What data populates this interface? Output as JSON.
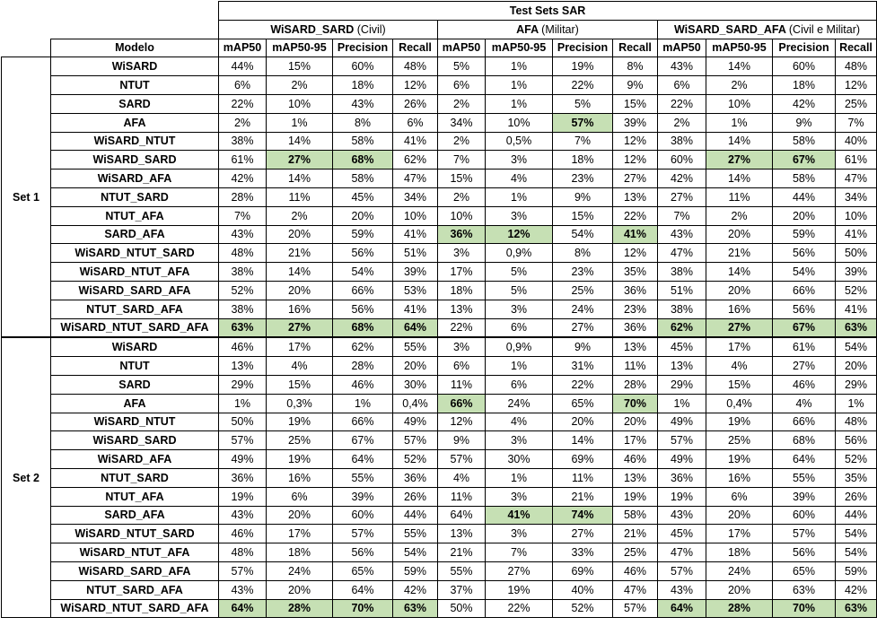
{
  "header": {
    "title": "Test Sets SAR",
    "modelo": "Modelo",
    "groups": [
      {
        "name": "WiSARD_SARD",
        "sub": "(Civil)"
      },
      {
        "name": "AFA",
        "sub": "(Militar)"
      },
      {
        "name": "WiSARD_SARD_AFA",
        "sub": "(Civil e Militar)"
      }
    ],
    "metrics": [
      "mAP50",
      "mAP50-95",
      "Precision",
      "Recall"
    ]
  },
  "sets": [
    {
      "label": "Set 1",
      "rows": [
        {
          "model": "WiSARD",
          "values": [
            "44%",
            "15%",
            "60%",
            "48%",
            "5%",
            "1%",
            "19%",
            "8%",
            "43%",
            "14%",
            "60%",
            "48%"
          ],
          "hl": []
        },
        {
          "model": "NTUT",
          "values": [
            "6%",
            "2%",
            "18%",
            "12%",
            "6%",
            "1%",
            "22%",
            "9%",
            "6%",
            "2%",
            "18%",
            "12%"
          ],
          "hl": []
        },
        {
          "model": "SARD",
          "values": [
            "22%",
            "10%",
            "43%",
            "26%",
            "2%",
            "1%",
            "5%",
            "15%",
            "22%",
            "10%",
            "42%",
            "25%"
          ],
          "hl": []
        },
        {
          "model": "AFA",
          "values": [
            "2%",
            "1%",
            "8%",
            "6%",
            "34%",
            "10%",
            "57%",
            "39%",
            "2%",
            "1%",
            "9%",
            "7%"
          ],
          "hl": [
            6
          ]
        },
        {
          "model": "WiSARD_NTUT",
          "values": [
            "38%",
            "14%",
            "58%",
            "41%",
            "2%",
            "0,5%",
            "7%",
            "12%",
            "38%",
            "14%",
            "58%",
            "40%"
          ],
          "hl": []
        },
        {
          "model": "WiSARD_SARD",
          "values": [
            "61%",
            "27%",
            "68%",
            "62%",
            "7%",
            "3%",
            "18%",
            "12%",
            "60%",
            "27%",
            "67%",
            "61%"
          ],
          "hl": [
            1,
            2,
            9,
            10
          ]
        },
        {
          "model": "WiSARD_AFA",
          "values": [
            "42%",
            "14%",
            "58%",
            "47%",
            "15%",
            "4%",
            "23%",
            "27%",
            "42%",
            "14%",
            "58%",
            "47%"
          ],
          "hl": []
        },
        {
          "model": "NTUT_SARD",
          "values": [
            "28%",
            "11%",
            "45%",
            "34%",
            "2%",
            "1%",
            "9%",
            "13%",
            "27%",
            "11%",
            "44%",
            "34%"
          ],
          "hl": []
        },
        {
          "model": "NTUT_AFA",
          "values": [
            "7%",
            "2%",
            "20%",
            "10%",
            "10%",
            "3%",
            "15%",
            "22%",
            "7%",
            "2%",
            "20%",
            "10%"
          ],
          "hl": []
        },
        {
          "model": "SARD_AFA",
          "values": [
            "43%",
            "20%",
            "59%",
            "41%",
            "36%",
            "12%",
            "54%",
            "41%",
            "43%",
            "20%",
            "59%",
            "41%"
          ],
          "hl": [
            4,
            5,
            7
          ]
        },
        {
          "model": "WiSARD_NTUT_SARD",
          "values": [
            "48%",
            "21%",
            "56%",
            "51%",
            "3%",
            "0,9%",
            "8%",
            "12%",
            "47%",
            "21%",
            "56%",
            "50%"
          ],
          "hl": []
        },
        {
          "model": "WiSARD_NTUT_AFA",
          "values": [
            "38%",
            "14%",
            "54%",
            "39%",
            "17%",
            "5%",
            "23%",
            "35%",
            "38%",
            "14%",
            "54%",
            "39%"
          ],
          "hl": []
        },
        {
          "model": "WiSARD_SARD_AFA",
          "values": [
            "52%",
            "20%",
            "66%",
            "53%",
            "18%",
            "5%",
            "25%",
            "36%",
            "51%",
            "20%",
            "66%",
            "52%"
          ],
          "hl": []
        },
        {
          "model": "NTUT_SARD_AFA",
          "values": [
            "38%",
            "16%",
            "56%",
            "41%",
            "13%",
            "3%",
            "24%",
            "23%",
            "38%",
            "16%",
            "56%",
            "41%"
          ],
          "hl": []
        },
        {
          "model": "WiSARD_NTUT_SARD_AFA",
          "values": [
            "63%",
            "27%",
            "68%",
            "64%",
            "22%",
            "6%",
            "27%",
            "36%",
            "62%",
            "27%",
            "67%",
            "63%"
          ],
          "hl": [
            0,
            1,
            2,
            3,
            8,
            9,
            10,
            11
          ]
        }
      ]
    },
    {
      "label": "Set 2",
      "rows": [
        {
          "model": "WiSARD",
          "values": [
            "46%",
            "17%",
            "62%",
            "55%",
            "3%",
            "0,9%",
            "9%",
            "13%",
            "45%",
            "17%",
            "61%",
            "54%"
          ],
          "hl": []
        },
        {
          "model": "NTUT",
          "values": [
            "13%",
            "4%",
            "28%",
            "20%",
            "6%",
            "1%",
            "31%",
            "11%",
            "13%",
            "4%",
            "27%",
            "20%"
          ],
          "hl": []
        },
        {
          "model": "SARD",
          "values": [
            "29%",
            "15%",
            "46%",
            "30%",
            "11%",
            "6%",
            "22%",
            "28%",
            "29%",
            "15%",
            "46%",
            "29%"
          ],
          "hl": []
        },
        {
          "model": "AFA",
          "values": [
            "1%",
            "0,3%",
            "1%",
            "0,4%",
            "66%",
            "24%",
            "65%",
            "70%",
            "1%",
            "0,4%",
            "4%",
            "1%"
          ],
          "hl": [
            4,
            7
          ]
        },
        {
          "model": "WiSARD_NTUT",
          "values": [
            "50%",
            "19%",
            "66%",
            "49%",
            "12%",
            "4%",
            "20%",
            "20%",
            "49%",
            "19%",
            "66%",
            "48%"
          ],
          "hl": []
        },
        {
          "model": "WiSARD_SARD",
          "values": [
            "57%",
            "25%",
            "67%",
            "57%",
            "9%",
            "3%",
            "14%",
            "17%",
            "57%",
            "25%",
            "68%",
            "56%"
          ],
          "hl": []
        },
        {
          "model": "WiSARD_AFA",
          "values": [
            "49%",
            "19%",
            "64%",
            "52%",
            "57%",
            "30%",
            "69%",
            "46%",
            "49%",
            "19%",
            "64%",
            "52%"
          ],
          "hl": []
        },
        {
          "model": "NTUT_SARD",
          "values": [
            "36%",
            "16%",
            "55%",
            "36%",
            "4%",
            "1%",
            "11%",
            "13%",
            "36%",
            "16%",
            "55%",
            "35%"
          ],
          "hl": []
        },
        {
          "model": "NTUT_AFA",
          "values": [
            "19%",
            "6%",
            "39%",
            "26%",
            "11%",
            "3%",
            "21%",
            "19%",
            "19%",
            "6%",
            "39%",
            "26%"
          ],
          "hl": []
        },
        {
          "model": "SARD_AFA",
          "values": [
            "43%",
            "20%",
            "60%",
            "44%",
            "64%",
            "41%",
            "74%",
            "58%",
            "43%",
            "20%",
            "60%",
            "44%"
          ],
          "hl": [
            5,
            6
          ]
        },
        {
          "model": "WiSARD_NTUT_SARD",
          "values": [
            "46%",
            "17%",
            "57%",
            "55%",
            "13%",
            "3%",
            "27%",
            "21%",
            "45%",
            "17%",
            "57%",
            "54%"
          ],
          "hl": []
        },
        {
          "model": "WiSARD_NTUT_AFA",
          "values": [
            "48%",
            "18%",
            "56%",
            "54%",
            "21%",
            "7%",
            "33%",
            "25%",
            "47%",
            "18%",
            "56%",
            "54%"
          ],
          "hl": []
        },
        {
          "model": "WiSARD_SARD_AFA",
          "values": [
            "57%",
            "24%",
            "65%",
            "59%",
            "55%",
            "27%",
            "69%",
            "46%",
            "57%",
            "24%",
            "65%",
            "59%"
          ],
          "hl": []
        },
        {
          "model": "NTUT_SARD_AFA",
          "values": [
            "43%",
            "20%",
            "64%",
            "42%",
            "37%",
            "19%",
            "40%",
            "47%",
            "43%",
            "20%",
            "63%",
            "42%"
          ],
          "hl": []
        },
        {
          "model": "WiSARD_NTUT_SARD_AFA",
          "values": [
            "64%",
            "28%",
            "70%",
            "63%",
            "50%",
            "22%",
            "52%",
            "57%",
            "64%",
            "28%",
            "70%",
            "63%"
          ],
          "hl": [
            0,
            1,
            2,
            3,
            8,
            9,
            10,
            11
          ]
        }
      ]
    }
  ]
}
